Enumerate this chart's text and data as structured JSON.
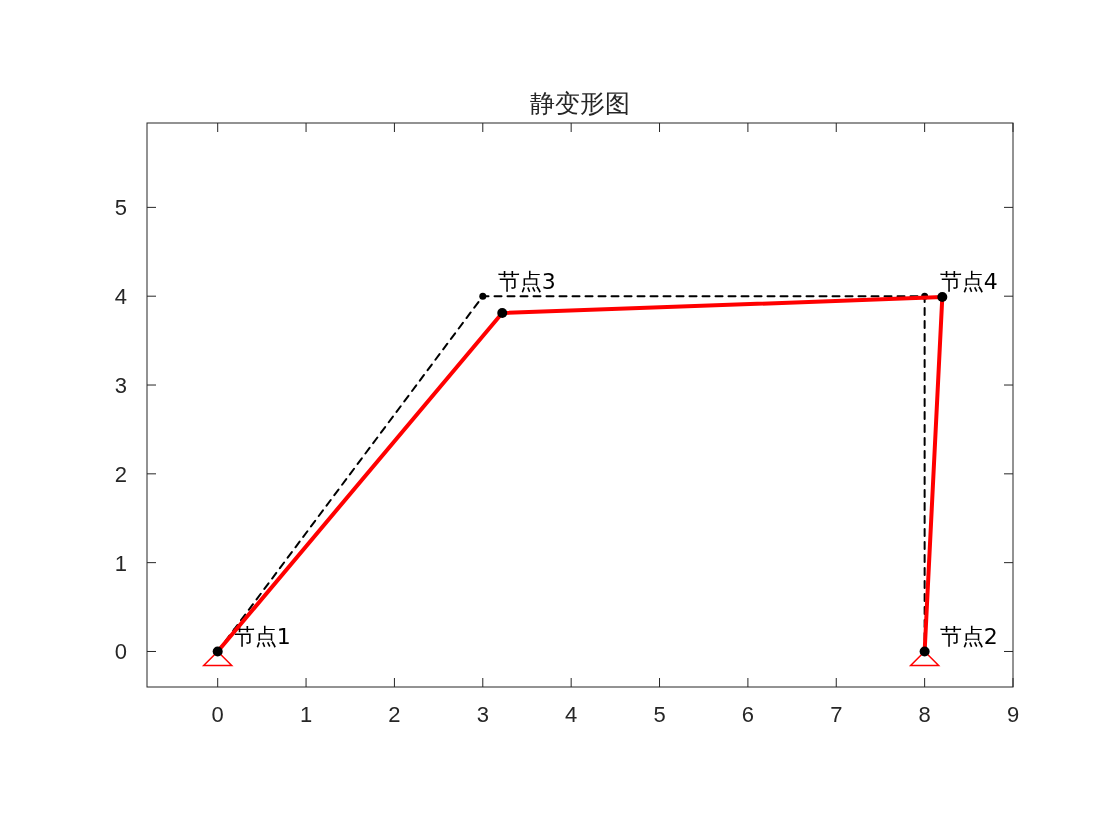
{
  "chart_data": {
    "type": "line",
    "title": "静变形图",
    "xlim": [
      -0.8,
      9
    ],
    "ylim": [
      -0.4,
      5.95
    ],
    "xticks": [
      0,
      1,
      2,
      3,
      4,
      5,
      6,
      7,
      8,
      9
    ],
    "yticks": [
      0,
      1,
      2,
      3,
      4,
      5
    ],
    "grid": false,
    "series": [
      {
        "x": [
          0,
          3,
          8,
          8
        ],
        "values": [
          0,
          4,
          4,
          0
        ],
        "color": "#000000",
        "line_style": "dashed",
        "marker": "circle"
      },
      {
        "x": [
          0,
          3.22,
          8.2,
          8
        ],
        "values": [
          0,
          3.81,
          3.99,
          0
        ],
        "color": "#ff0000",
        "line_style": "solid",
        "marker": "circle"
      }
    ],
    "annotations": [
      {
        "text": "节点1",
        "x": 0,
        "y": 0
      },
      {
        "text": "节点2",
        "x": 8,
        "y": 0
      },
      {
        "text": "节点3",
        "x": 3,
        "y": 4
      },
      {
        "text": "节点4",
        "x": 8,
        "y": 4
      }
    ]
  }
}
